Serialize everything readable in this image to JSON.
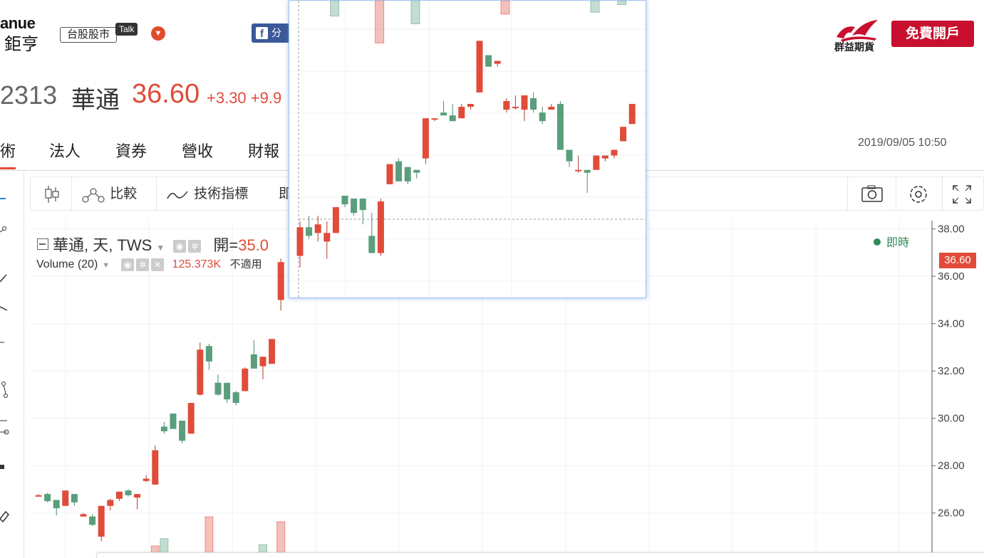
{
  "header": {
    "logo_top": "anue",
    "logo_bottom": "鉅亨",
    "talk_label": "台股股市",
    "talk_bubble": "Talk",
    "dropdown_icon": "chevron-down-icon",
    "fb_label": "分",
    "brand_name": "群益期貨",
    "open_account": "免費開戶"
  },
  "stock": {
    "code": "2313",
    "name": "華通",
    "price": "36.60",
    "change": "+3.30 +9.9"
  },
  "tabs": [
    {
      "label": "術",
      "active": true
    },
    {
      "label": "法人",
      "active": false
    },
    {
      "label": "資券",
      "active": false
    },
    {
      "label": "營收",
      "active": false
    },
    {
      "label": "財報",
      "active": false
    }
  ],
  "datetime": "2019/09/05 10:50",
  "toolbar": {
    "compare": "比較",
    "indicators": "技術指標",
    "more": "即"
  },
  "legend": {
    "symbol": "華通, 天, TWS",
    "open_label": "開=",
    "open_value": "35.0",
    "volume_label": "Volume (20)",
    "volume_value": "125.373K",
    "na_text": "不適用"
  },
  "live_label": "即時",
  "price_tag": "36.60",
  "colors": {
    "up": "#e04b3a",
    "down": "#5a9e7c",
    "accent": "#c8102e"
  },
  "chart_data": {
    "type": "candlestick",
    "y_axis_ticks": [
      "38.00",
      "36.00",
      "34.00",
      "32.00",
      "30.00",
      "28.00",
      "26.00"
    ],
    "ylim": [
      25.0,
      38.2
    ],
    "last_price": 36.6,
    "main_candles": [
      {
        "o": 26.75,
        "h": 26.8,
        "l": 26.7,
        "c": 26.75
      },
      {
        "o": 26.8,
        "h": 26.85,
        "l": 26.45,
        "c": 26.5
      },
      {
        "o": 26.55,
        "h": 26.55,
        "l": 25.9,
        "c": 26.2
      },
      {
        "o": 26.3,
        "h": 26.95,
        "l": 26.3,
        "c": 26.95
      },
      {
        "o": 26.8,
        "h": 26.8,
        "l": 26.3,
        "c": 26.45
      },
      {
        "o": 25.85,
        "h": 26.0,
        "l": 25.85,
        "c": 25.95
      },
      {
        "o": 25.85,
        "h": 25.95,
        "l": 25.45,
        "c": 25.5
      },
      {
        "o": 25.0,
        "h": 26.3,
        "l": 24.8,
        "c": 26.3
      },
      {
        "o": 26.3,
        "h": 26.6,
        "l": 26.1,
        "c": 26.55
      },
      {
        "o": 26.6,
        "h": 26.9,
        "l": 26.5,
        "c": 26.9
      },
      {
        "o": 26.95,
        "h": 27.0,
        "l": 26.7,
        "c": 26.75
      },
      {
        "o": 26.65,
        "h": 26.8,
        "l": 26.15,
        "c": 26.8
      },
      {
        "o": 27.35,
        "h": 27.6,
        "l": 27.3,
        "c": 27.45
      },
      {
        "o": 27.2,
        "h": 28.85,
        "l": 27.2,
        "c": 28.65
      },
      {
        "o": 29.65,
        "h": 29.85,
        "l": 29.35,
        "c": 29.45
      },
      {
        "o": 30.2,
        "h": 30.2,
        "l": 29.55,
        "c": 29.55
      },
      {
        "o": 29.9,
        "h": 29.9,
        "l": 28.95,
        "c": 29.05
      },
      {
        "o": 29.35,
        "h": 30.65,
        "l": 29.35,
        "c": 30.65
      },
      {
        "o": 31.0,
        "h": 33.2,
        "l": 30.95,
        "c": 32.9
      },
      {
        "o": 33.05,
        "h": 33.15,
        "l": 32.05,
        "c": 32.4
      },
      {
        "o": 31.5,
        "h": 31.85,
        "l": 30.95,
        "c": 31.0
      },
      {
        "o": 31.5,
        "h": 31.5,
        "l": 30.65,
        "c": 30.8
      },
      {
        "o": 31.1,
        "h": 31.15,
        "l": 30.55,
        "c": 30.65
      },
      {
        "o": 31.15,
        "h": 32.15,
        "l": 31.15,
        "c": 32.1
      },
      {
        "o": 32.7,
        "h": 33.3,
        "l": 32.1,
        "c": 32.1
      },
      {
        "o": 32.2,
        "h": 32.6,
        "l": 31.65,
        "c": 32.6
      },
      {
        "o": 32.3,
        "h": 33.35,
        "l": 32.3,
        "c": 33.35
      },
      {
        "o": 35.0,
        "h": 36.75,
        "l": 34.55,
        "c": 36.6
      }
    ],
    "volume_bars": [
      {
        "i": 13,
        "v": 0.5,
        "up": true
      },
      {
        "i": 14,
        "v": 0.8,
        "up": false
      },
      {
        "i": 19,
        "v": 1.7,
        "up": true
      },
      {
        "i": 25,
        "v": 0.55,
        "up": false
      },
      {
        "i": 27,
        "v": 1.5,
        "up": true
      }
    ],
    "popup_candles": [
      {
        "o": 39.2,
        "h": 39.8,
        "l": 39.0,
        "c": 39.7
      },
      {
        "o": 39.7,
        "h": 39.9,
        "l": 39.5,
        "c": 39.55
      },
      {
        "o": 39.6,
        "h": 39.9,
        "l": 39.45,
        "c": 39.75
      },
      {
        "o": 39.45,
        "h": 39.8,
        "l": 39.15,
        "c": 39.6
      },
      {
        "o": 39.6,
        "h": 40.05,
        "l": 39.6,
        "c": 40.05
      },
      {
        "o": 40.25,
        "h": 40.25,
        "l": 40.05,
        "c": 40.1
      },
      {
        "o": 40.2,
        "h": 40.2,
        "l": 39.9,
        "c": 39.95
      },
      {
        "o": 40.2,
        "h": 40.2,
        "l": 39.75,
        "c": 40.0
      },
      {
        "o": 39.55,
        "h": 39.95,
        "l": 39.25,
        "c": 39.25
      },
      {
        "o": 39.25,
        "h": 40.2,
        "l": 39.2,
        "c": 40.15
      },
      {
        "o": 40.45,
        "h": 40.8,
        "l": 40.45,
        "c": 40.8
      },
      {
        "o": 40.85,
        "h": 40.9,
        "l": 40.5,
        "c": 40.5
      },
      {
        "o": 40.75,
        "h": 40.75,
        "l": 40.45,
        "c": 40.5
      },
      {
        "o": 40.7,
        "h": 40.7,
        "l": 40.55,
        "c": 40.65
      },
      {
        "o": 40.9,
        "h": 41.6,
        "l": 40.8,
        "c": 41.6
      },
      {
        "o": 41.6,
        "h": 41.6,
        "l": 41.55,
        "c": 41.6
      },
      {
        "o": 41.7,
        "h": 41.9,
        "l": 41.65,
        "c": 41.65
      },
      {
        "o": 41.65,
        "h": 41.85,
        "l": 41.55,
        "c": 41.55
      },
      {
        "o": 41.6,
        "h": 41.85,
        "l": 41.6,
        "c": 41.8
      },
      {
        "o": 41.8,
        "h": 41.85,
        "l": 41.75,
        "c": 41.85
      },
      {
        "o": 42.05,
        "h": 42.95,
        "l": 42.05,
        "c": 42.95
      },
      {
        "o": 42.7,
        "h": 42.7,
        "l": 42.5,
        "c": 42.5
      },
      {
        "o": 42.55,
        "h": 42.6,
        "l": 42.5,
        "c": 42.6
      },
      {
        "o": 41.75,
        "h": 41.95,
        "l": 41.7,
        "c": 41.9
      },
      {
        "o": 41.8,
        "h": 42.0,
        "l": 41.75,
        "c": 41.8
      },
      {
        "o": 41.75,
        "h": 42.0,
        "l": 41.55,
        "c": 42.0
      },
      {
        "o": 41.95,
        "h": 42.05,
        "l": 41.7,
        "c": 41.75
      },
      {
        "o": 41.7,
        "h": 41.8,
        "l": 41.5,
        "c": 41.55
      },
      {
        "o": 41.75,
        "h": 41.85,
        "l": 41.75,
        "c": 41.8
      },
      {
        "o": 41.85,
        "h": 41.9,
        "l": 41.05,
        "c": 41.05
      },
      {
        "o": 41.05,
        "h": 41.05,
        "l": 40.75,
        "c": 40.85
      },
      {
        "o": 40.7,
        "h": 40.95,
        "l": 40.65,
        "c": 40.7
      },
      {
        "o": 40.7,
        "h": 40.65,
        "l": 40.3,
        "c": 40.65
      },
      {
        "o": 40.7,
        "h": 40.95,
        "l": 40.7,
        "c": 40.95
      },
      {
        "o": 40.9,
        "h": 40.95,
        "l": 40.85,
        "c": 40.95
      },
      {
        "o": 40.95,
        "h": 41.05,
        "l": 40.9,
        "c": 41.05
      },
      {
        "o": 41.2,
        "h": 41.45,
        "l": 41.2,
        "c": 41.45
      },
      {
        "o": 41.5,
        "h": 41.85,
        "l": 41.5,
        "c": 41.85
      }
    ],
    "popup_volume_bars": [
      {
        "i": 1,
        "v": 0.8,
        "up": false
      },
      {
        "i": 6,
        "v": 2.2,
        "up": true
      },
      {
        "i": 10,
        "v": 1.2,
        "up": false
      },
      {
        "i": 20,
        "v": 0.7,
        "up": true
      },
      {
        "i": 30,
        "v": 0.6,
        "up": false
      },
      {
        "i": 33,
        "v": 0.2,
        "up": false
      }
    ],
    "popup_ylim": [
      38.45,
      43.65
    ]
  }
}
